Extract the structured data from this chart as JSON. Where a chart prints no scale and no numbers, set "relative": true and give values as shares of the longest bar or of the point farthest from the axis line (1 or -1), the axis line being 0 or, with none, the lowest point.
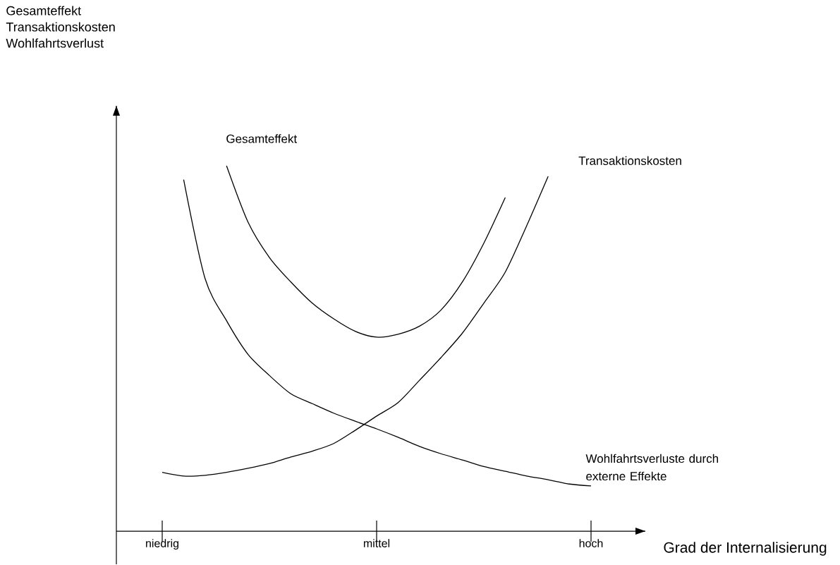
{
  "chart_data": {
    "type": "line",
    "relative": true,
    "legend": false,
    "marker": "none",
    "line_style": "solid",
    "annotations": [
      "Gesamteffekt Transaktionskosten Wohlfahrtsverlust"
    ],
    "xlabel": "Grad der Internalisierung",
    "categories": [
      "niedrig",
      null,
      null,
      null,
      null,
      null,
      null,
      null,
      null,
      null,
      "mittel",
      null,
      null,
      null,
      null,
      null,
      null,
      null,
      null,
      null,
      "hoch"
    ],
    "series": [
      {
        "name": "Gesamteffekt",
        "color": "#000000",
        "values": [
          null,
          null,
          null,
          1.0,
          0.846,
          0.749,
          0.682,
          0.624,
          0.581,
          0.547,
          0.531,
          0.539,
          0.561,
          0.605,
          0.682,
          0.788,
          0.913,
          null,
          null,
          null,
          null
        ]
      },
      {
        "name": "Transaktionskosten",
        "color": "#000000",
        "values": [
          0.161,
          0.151,
          0.153,
          0.161,
          0.172,
          0.185,
          0.203,
          0.219,
          0.24,
          0.276,
          0.315,
          0.352,
          0.413,
          0.475,
          0.542,
          0.624,
          0.709,
          0.836,
          0.971,
          null,
          null
        ]
      },
      {
        "name": "Wohlfahrtsverluste durch externe Effekte",
        "color": "#000000",
        "values": [
          null,
          0.962,
          0.691,
          0.576,
          0.484,
          0.426,
          0.376,
          0.349,
          0.323,
          0.301,
          0.28,
          0.257,
          0.232,
          0.212,
          0.195,
          0.177,
          0.164,
          0.151,
          0.141,
          0.129,
          0.124
        ]
      }
    ]
  }
}
